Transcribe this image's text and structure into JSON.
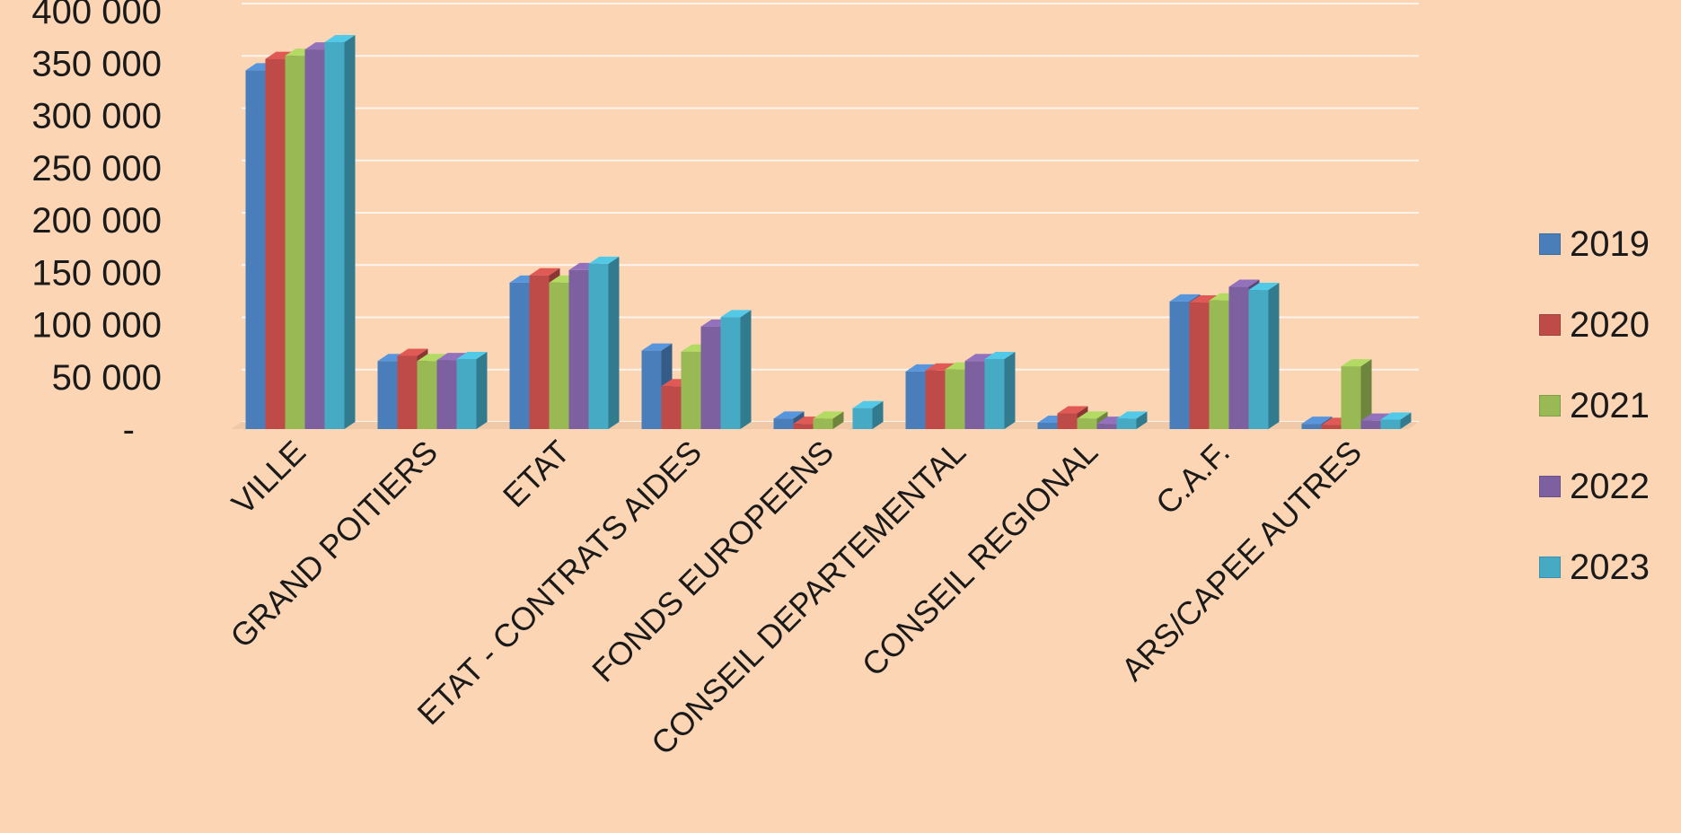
{
  "chart_data": {
    "type": "bar",
    "categories": [
      "VILLE",
      "GRAND POITIERS",
      "ETAT",
      "ETAT - CONTRATS AIDES",
      "FONDS EUROPEENS",
      "CONSEIL DEPARTEMENTAL",
      "CONSEIL REGIONAL",
      "C.A.F.",
      "ARS/CAPEE AUTRES"
    ],
    "series": [
      {
        "name": "2019",
        "color": "#4a7ebb",
        "values": [
          343000,
          65000,
          140000,
          75000,
          10000,
          55000,
          6000,
          122000,
          5000
        ]
      },
      {
        "name": "2020",
        "color": "#be4b48",
        "values": [
          354000,
          70000,
          147000,
          41000,
          5000,
          56000,
          15000,
          121000,
          4000
        ]
      },
      {
        "name": "2021",
        "color": "#98b954",
        "values": [
          357000,
          65000,
          140000,
          74000,
          10000,
          57000,
          10000,
          123000,
          60000
        ]
      },
      {
        "name": "2022",
        "color": "#7d60a0",
        "values": [
          363000,
          66000,
          152000,
          98000,
          0,
          65000,
          5000,
          136000,
          8000
        ]
      },
      {
        "name": "2023",
        "color": "#46aac5",
        "values": [
          370000,
          67000,
          158000,
          107000,
          20000,
          67000,
          10000,
          133000,
          9000
        ]
      }
    ],
    "y_ticks": [
      "-",
      "50 000",
      "100 000",
      "150 000",
      "200 000",
      "250 000",
      "300 000",
      "350 000",
      "400 000"
    ],
    "ylim": [
      0,
      400000
    ],
    "grid": true,
    "legend_position": "right"
  }
}
